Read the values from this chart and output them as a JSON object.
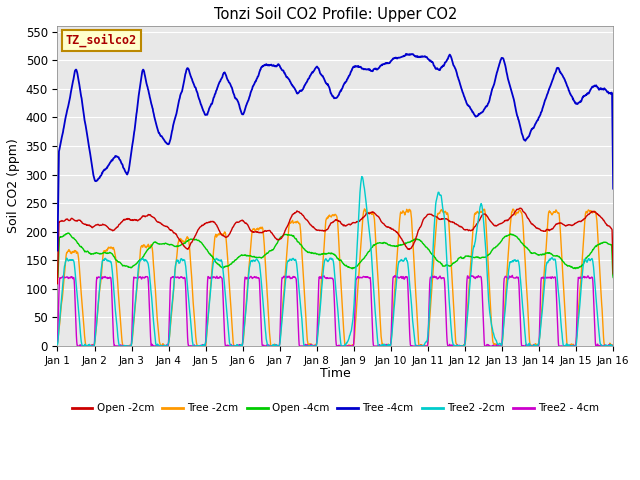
{
  "title": "Tonzi Soil CO2 Profile: Upper CO2",
  "ylabel": "Soil CO2 (ppm)",
  "xlabel": "Time",
  "xlim": [
    0,
    15
  ],
  "ylim": [
    0,
    560
  ],
  "yticks": [
    0,
    50,
    100,
    150,
    200,
    250,
    300,
    350,
    400,
    450,
    500,
    550
  ],
  "xtick_labels": [
    "Jan 1",
    "Jan 2",
    "Jan 3",
    "Jan 4",
    "Jan 5",
    "Jan 6",
    "Jan 7",
    "Jan 8",
    "Jan 9",
    "Jan 10",
    "Jan 11",
    "Jan 12",
    "Jan 13",
    "Jan 14",
    "Jan 15",
    "Jan 16"
  ],
  "label_box": "TZ_soilco2",
  "label_box_color": "#ffffcc",
  "label_box_text_color": "#aa0000",
  "background_color": "#e8e8e8",
  "series_colors": {
    "open_2cm": "#cc0000",
    "tree_2cm": "#ff9900",
    "open_4cm": "#00cc00",
    "tree_4cm": "#0000cc",
    "tree2_2cm": "#00cccc",
    "tree2_4cm": "#cc00cc"
  },
  "legend_labels": [
    "Open -2cm",
    "Tree -2cm",
    "Open -4cm",
    "Tree -4cm",
    "Tree2 -2cm",
    "Tree2 - 4cm"
  ]
}
